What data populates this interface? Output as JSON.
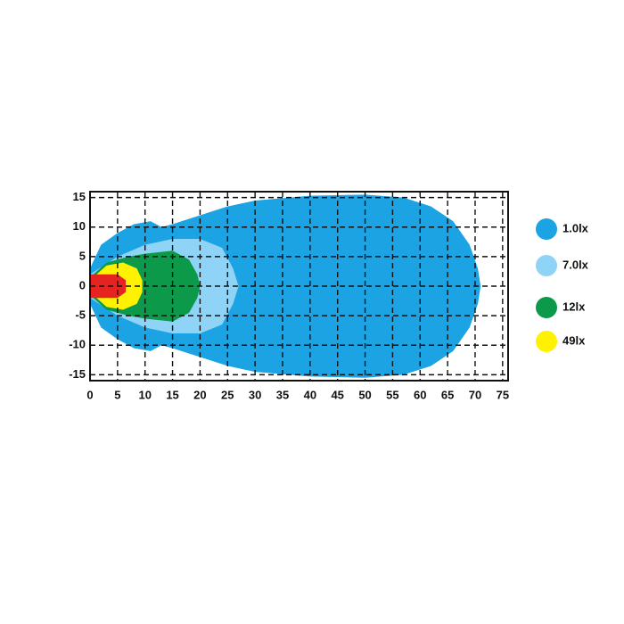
{
  "chart_data": {
    "type": "isolux",
    "xlim": [
      0,
      76
    ],
    "ylim": [
      -16,
      16
    ],
    "xticks": [
      0,
      5,
      10,
      15,
      20,
      25,
      30,
      35,
      40,
      45,
      50,
      55,
      60,
      65,
      70,
      75
    ],
    "yticks": [
      -15,
      -10,
      -5,
      0,
      5,
      10,
      15
    ],
    "grid": true,
    "legend": "right",
    "series": [
      {
        "name": "1.0lx",
        "color": "#1ba3e3",
        "x": [
          0,
          2,
          5,
          8,
          11,
          13,
          15,
          20,
          25,
          30,
          40,
          50,
          57,
          62,
          66,
          69,
          70.5,
          71,
          70.5,
          69,
          66,
          62,
          57,
          50,
          40,
          30,
          25,
          20,
          15,
          13,
          11,
          8,
          5,
          2,
          0
        ],
        "y": [
          3,
          7,
          9,
          10.5,
          11,
          10,
          10.5,
          12,
          13.5,
          14.5,
          15.3,
          15.5,
          15,
          13.5,
          11,
          7,
          3,
          0,
          -3,
          -7,
          -11,
          -13.5,
          -15,
          -15.5,
          -15.3,
          -14.5,
          -13.5,
          -12,
          -10.5,
          -10,
          -11,
          -10.5,
          -9,
          -7,
          -3
        ]
      },
      {
        "name": "7.0lx",
        "color": "#8fd4f6",
        "x": [
          0,
          5,
          10,
          15,
          20,
          24,
          26,
          27,
          26,
          24,
          20,
          15,
          10,
          5,
          0
        ],
        "y": [
          2,
          5,
          7,
          8,
          8,
          6.5,
          3,
          0,
          -3,
          -6.5,
          -8,
          -8,
          -7,
          -5,
          -2
        ]
      },
      {
        "name": "12lx",
        "color": "#0c9a4a",
        "x": [
          0,
          3,
          7,
          10,
          15,
          18,
          19.5,
          20,
          19.5,
          18,
          15,
          10,
          7,
          3,
          0
        ],
        "y": [
          1.5,
          4,
          5,
          5.5,
          6,
          4.5,
          2,
          0,
          -2,
          -4.5,
          -6,
          -5.5,
          -5,
          -4,
          -1.5
        ]
      },
      {
        "name": "49lx",
        "color": "#fff200",
        "x": [
          0,
          3,
          6,
          8.5,
          9.5,
          9.5,
          8.5,
          6,
          3,
          0
        ],
        "y": [
          1,
          3.5,
          4,
          3,
          1,
          -1,
          -3,
          -4,
          -3.5,
          -1
        ]
      },
      {
        "color": "#e52421",
        "x": [
          0,
          5,
          6.5,
          6.5,
          5,
          0
        ],
        "y": [
          2,
          2,
          1,
          -1,
          -2,
          -2
        ]
      }
    ]
  }
}
